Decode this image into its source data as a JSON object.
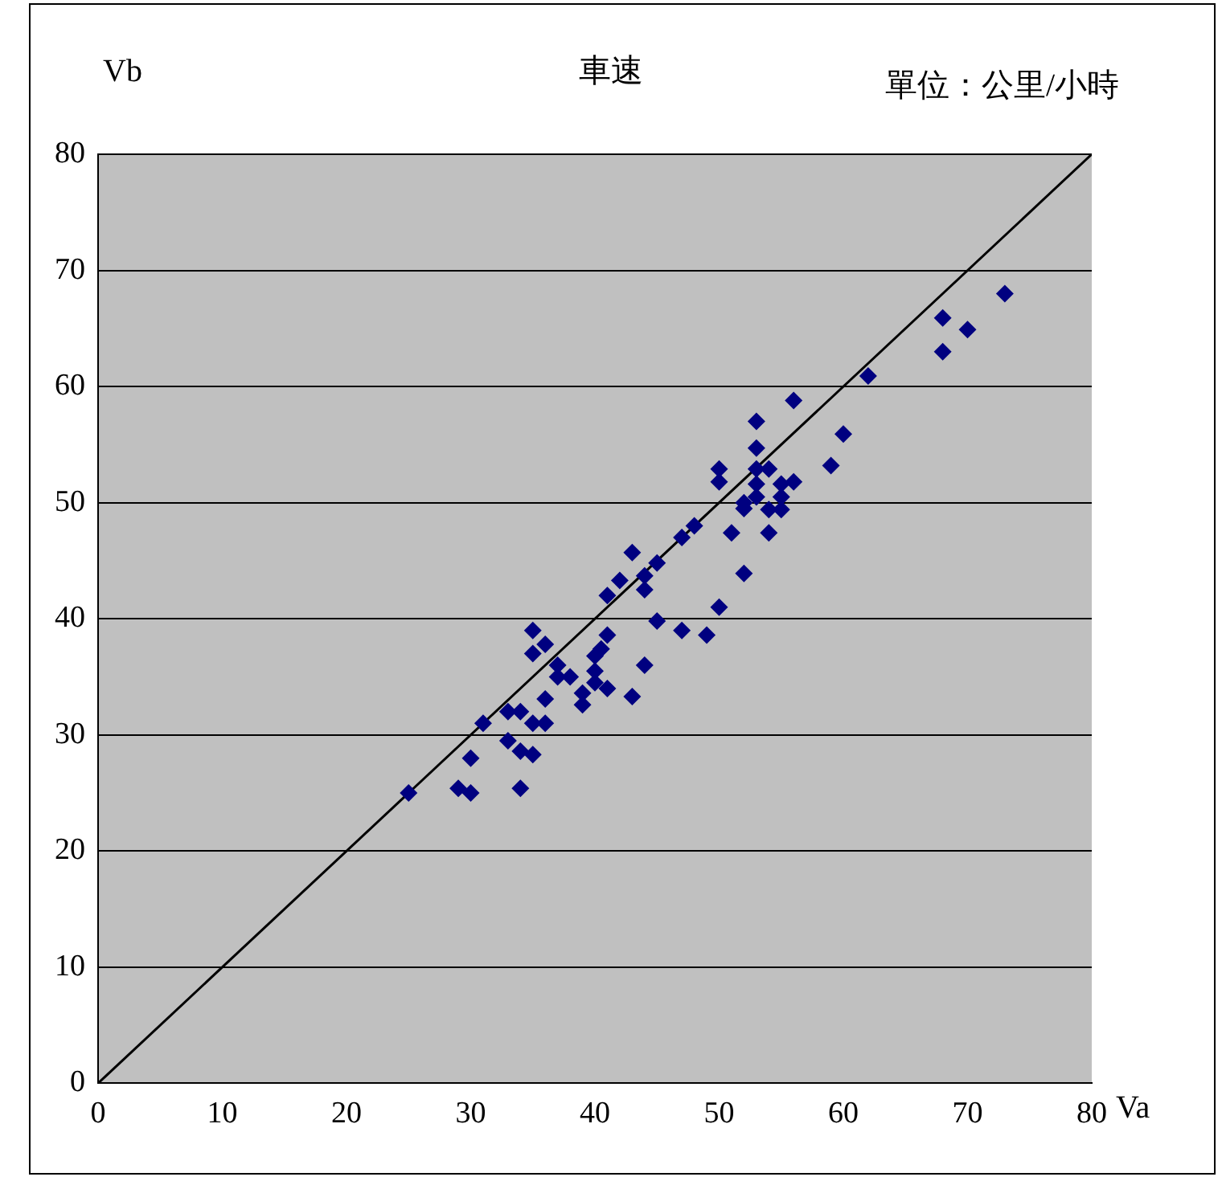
{
  "chart_data": {
    "type": "scatter",
    "title": "車速",
    "xlabel": "Va",
    "ylabel": "Vb",
    "annotations": [
      "單位：公里/小時"
    ],
    "xlim": [
      0,
      80
    ],
    "xticks": [
      0,
      10,
      20,
      30,
      40,
      50,
      60,
      70,
      80
    ],
    "ylim": [
      0,
      80
    ],
    "yticks": [
      0,
      10,
      20,
      30,
      40,
      50,
      60,
      70,
      80
    ],
    "grid": "y",
    "legend": false,
    "marker": "diamond",
    "series": [
      {
        "color": "#000080",
        "x": [
          25,
          29,
          30,
          30,
          31,
          33,
          33,
          34,
          34,
          34,
          35,
          35,
          35,
          35,
          36,
          36,
          36,
          37,
          37,
          38,
          39,
          39,
          40,
          40,
          40,
          40.5,
          41,
          41,
          41,
          42,
          43,
          43,
          44,
          44,
          44,
          45,
          45,
          47,
          47,
          48,
          49,
          50,
          50,
          50,
          51,
          52,
          52,
          52,
          53,
          53,
          53,
          53,
          53,
          54,
          54,
          54,
          55,
          55,
          55,
          56,
          56,
          59,
          60,
          62,
          68,
          68,
          70,
          73
        ],
        "values": [
          25,
          25.4,
          25,
          28,
          31,
          32,
          29.5,
          32,
          28.6,
          25.4,
          39,
          37,
          31,
          28.3,
          37.8,
          33.1,
          31,
          36,
          35,
          35,
          33.6,
          32.6,
          35.5,
          36.8,
          34.5,
          37.4,
          38.6,
          42,
          34,
          43.3,
          45.7,
          33.3,
          43.7,
          42.5,
          36,
          44.8,
          39.8,
          47,
          39,
          48,
          38.6,
          41,
          52.9,
          51.8,
          47.4,
          43.9,
          50,
          49.5,
          57,
          54.7,
          52.9,
          51.6,
          50.5,
          52.9,
          49.4,
          47.4,
          51.6,
          50.5,
          49.4,
          51.8,
          58.8,
          53.2,
          55.9,
          60.9,
          65.9,
          63,
          64.9,
          68
        ]
      },
      {
        "type": "line",
        "color": "#000000",
        "marker": "none",
        "x": [
          0,
          80
        ],
        "values": [
          0,
          80
        ]
      }
    ]
  }
}
